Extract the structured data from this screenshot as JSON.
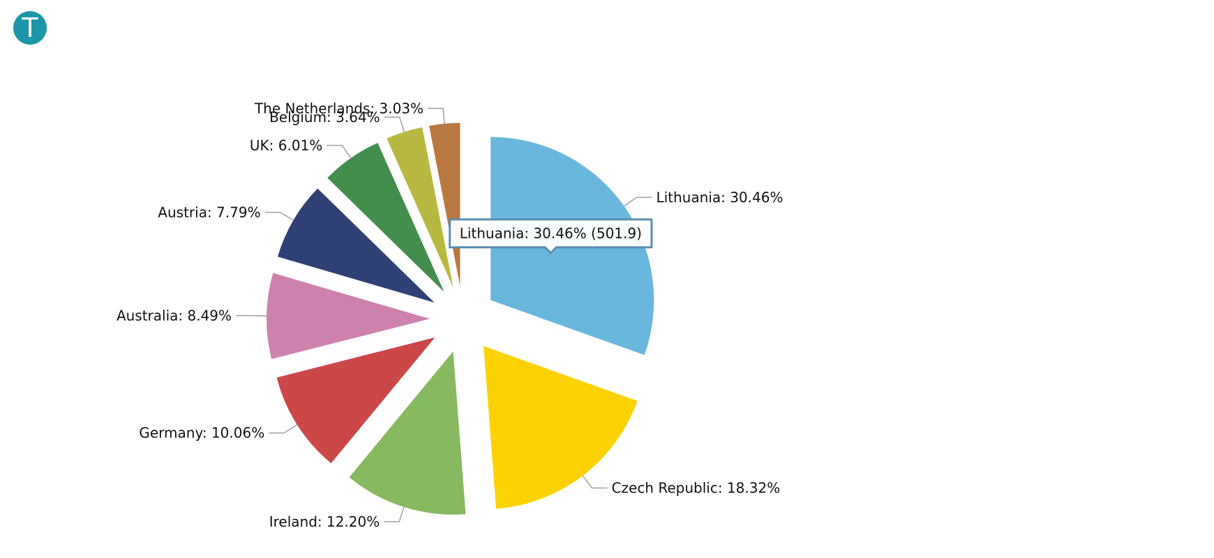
{
  "logo": {
    "letter": "T",
    "color": "#1a96a8"
  },
  "chart_data": {
    "type": "pie",
    "exploded": true,
    "slices": [
      {
        "name": "Lithuania",
        "value": 501.9,
        "label": "Lithuania: 30.46%",
        "color": "#69b7dd"
      },
      {
        "name": "Czech Republic",
        "value": 301.9,
        "label": "Czech Republic: 18.32%",
        "color": "#fcd202"
      },
      {
        "name": "Ireland",
        "value": 201.1,
        "label": "Ireland: 12.20%",
        "color": "#86b960"
      },
      {
        "name": "Germany",
        "value": 165.8,
        "label": "Germany: 10.06%",
        "color": "#cc4748"
      },
      {
        "name": "Australia",
        "value": 139.9,
        "label": "Australia: 8.49%",
        "color": "#cd82ad"
      },
      {
        "name": "Austria",
        "value": 128.3,
        "label": "Austria: 7.79%",
        "color": "#2f4074"
      },
      {
        "name": "UK",
        "value": 99,
        "label": "UK: 6.01%",
        "color": "#448e4d"
      },
      {
        "name": "Belgium",
        "value": 60,
        "label": "Belgium: 3.64%",
        "color": "#b7b83f"
      },
      {
        "name": "The Netherlands",
        "value": 50,
        "label": "The Netherlands: 3.03%",
        "color": "#b9783f"
      }
    ],
    "tooltip": {
      "text": "Lithuania: 30.46% (501.9)"
    }
  }
}
